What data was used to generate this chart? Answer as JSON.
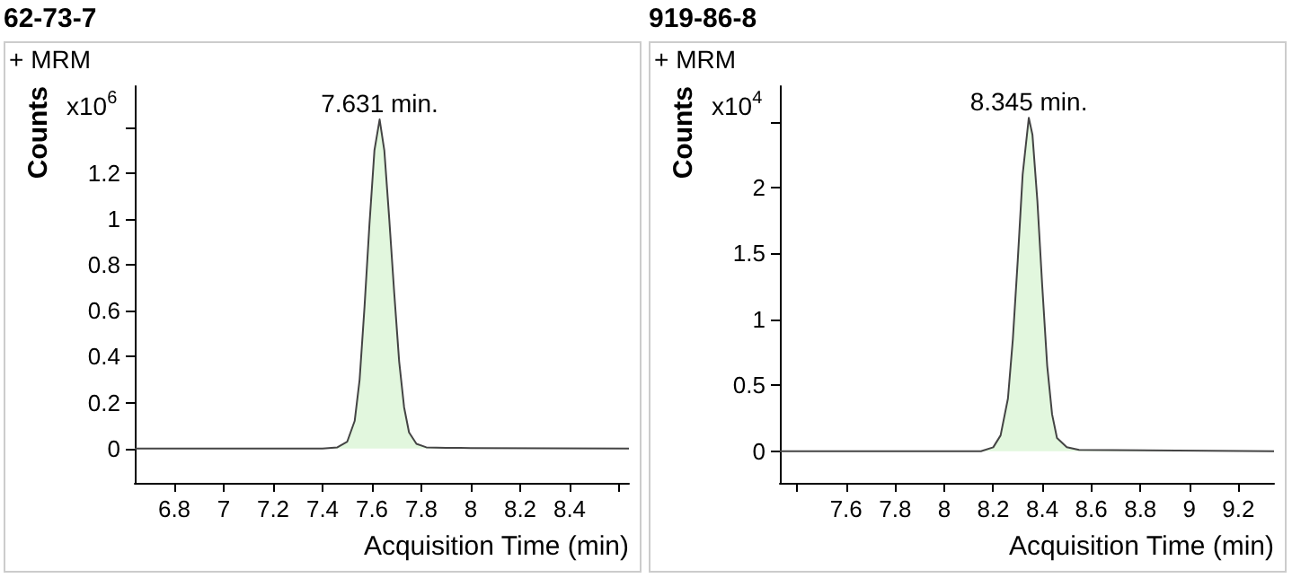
{
  "chart_data": [
    {
      "type": "area",
      "title": "62-73-7",
      "xlabel": "Acquisition Time (min)",
      "ylabel": "Counts",
      "annotations": [
        "+ MRM",
        "x10$^{6}$",
        {
          "text": "7.631 min.",
          "x": 7.631,
          "y": 1.435
        }
      ],
      "xlim": [
        6.64,
        8.64
      ],
      "xticks": [
        6.8,
        7,
        7.2,
        7.4,
        7.6,
        7.8,
        8,
        8.2,
        8.4,
        {
          "value": 8.6,
          "label": null
        }
      ],
      "ylim": [
        -0.15,
        1.58
      ],
      "yticks": [
        0,
        0.2,
        0.4,
        0.6,
        0.8,
        1,
        1.2,
        {
          "value": 1.4,
          "label": null
        }
      ],
      "grid": false,
      "series": [
        {
          "color": "#e2f7de",
          "x": [
            6.64,
            7.4,
            7.46,
            7.5,
            7.53,
            7.55,
            7.57,
            7.59,
            7.61,
            7.631,
            7.65,
            7.67,
            7.69,
            7.71,
            7.73,
            7.75,
            7.78,
            7.82,
            7.9,
            8.0,
            8.64
          ],
          "values": [
            0,
            0,
            0.005,
            0.03,
            0.12,
            0.3,
            0.62,
            0.98,
            1.3,
            1.435,
            1.3,
            1.0,
            0.68,
            0.38,
            0.18,
            0.07,
            0.02,
            0.005,
            0.003,
            0.002,
            0
          ]
        }
      ]
    },
    {
      "type": "area",
      "title": "919-86-8",
      "xlabel": "Acquisition Time (min)",
      "ylabel": "Counts",
      "annotations": [
        "+ MRM",
        "x10$^{4}$",
        {
          "text": "8.345 min.",
          "x": 8.345,
          "y": 2.53
        }
      ],
      "xlim": [
        7.33,
        9.345
      ],
      "xticks": [
        {
          "value": 7.4,
          "label": null
        },
        7.6,
        7.8,
        8,
        8.2,
        8.4,
        8.6,
        8.8,
        9,
        9.2
      ],
      "ylim": [
        -0.24,
        2.77
      ],
      "yticks": [
        0,
        0.5,
        1,
        1.5,
        2,
        {
          "value": 2.5,
          "label": null
        }
      ],
      "grid": false,
      "series": [
        {
          "color": "#e2f7de",
          "x": [
            7.33,
            8.15,
            8.2,
            8.23,
            8.26,
            8.28,
            8.3,
            8.32,
            8.345,
            8.36,
            8.38,
            8.4,
            8.42,
            8.44,
            8.46,
            8.5,
            8.55,
            9.345
          ],
          "values": [
            0,
            0,
            0.03,
            0.12,
            0.4,
            0.85,
            1.45,
            2.1,
            2.53,
            2.4,
            1.9,
            1.25,
            0.65,
            0.28,
            0.1,
            0.03,
            0.01,
            0
          ]
        }
      ]
    }
  ]
}
